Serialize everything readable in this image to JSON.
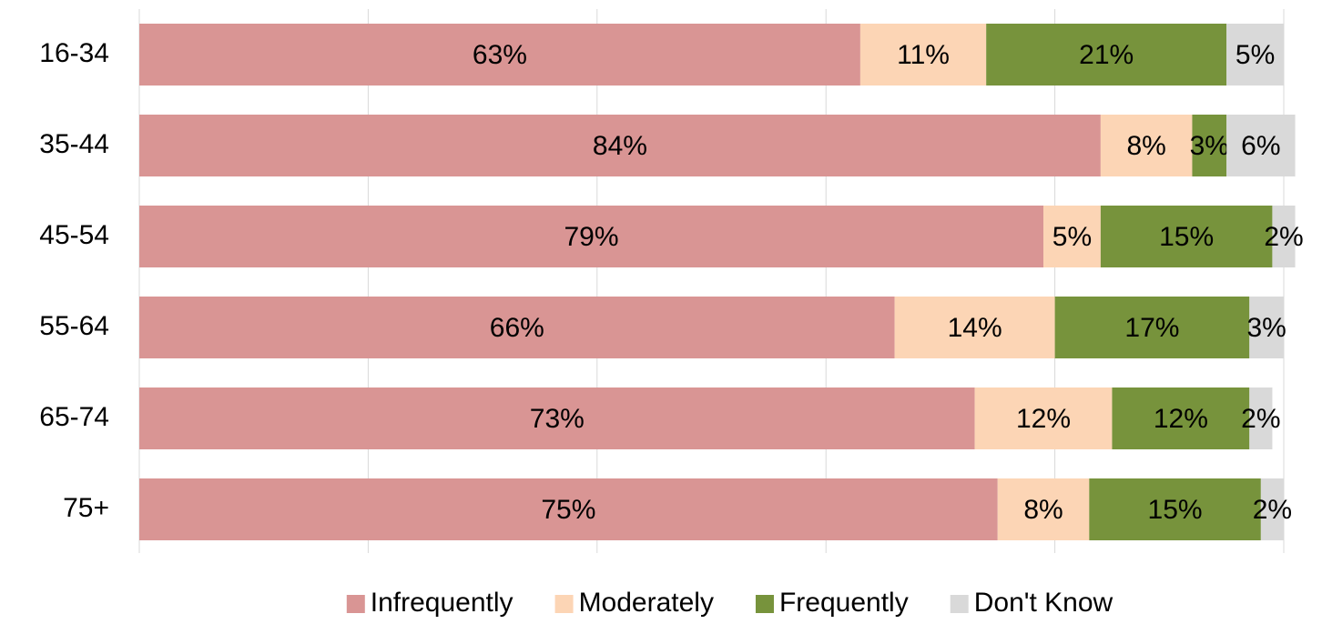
{
  "chart_data": {
    "type": "stacked_barh",
    "categories": [
      "16-34",
      "35-44",
      "45-54",
      "55-64",
      "65-74",
      "75+"
    ],
    "series": [
      {
        "name": "Infrequently",
        "color": "#d99594",
        "values": [
          63,
          84,
          79,
          66,
          73,
          75
        ],
        "value_labels": [
          "63%",
          "84%",
          "79%",
          "66%",
          "73%",
          "75%"
        ]
      },
      {
        "name": "Moderately",
        "color": "#fcd5b5",
        "values": [
          11,
          8,
          5,
          14,
          12,
          8
        ],
        "value_labels": [
          "11%",
          "8%",
          "5%",
          "14%",
          "12%",
          "8%"
        ]
      },
      {
        "name": "Frequently",
        "color": "#77933c",
        "values": [
          21,
          3,
          15,
          17,
          12,
          15
        ],
        "value_labels": [
          "21%",
          "3%",
          "15%",
          "17%",
          "12%",
          "15%"
        ]
      },
      {
        "name": "Don't Know",
        "color": "#d9d9d9",
        "values": [
          5,
          6,
          2,
          3,
          2,
          2
        ],
        "value_labels": [
          "5%",
          "6%",
          "2%",
          "3%",
          "2%",
          "2%"
        ]
      }
    ],
    "xlim": [
      0,
      100
    ],
    "xticks": [
      0,
      20,
      40,
      60,
      80,
      100
    ],
    "grid": true,
    "legend": "bottom"
  }
}
